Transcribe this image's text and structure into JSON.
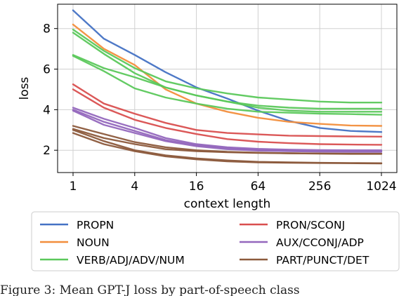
{
  "chart_data": {
    "type": "line",
    "title": "",
    "xlabel": "context length",
    "ylabel": "loss",
    "xscale": "log2",
    "x_ticks": [
      "1",
      "4",
      "16",
      "64",
      "256",
      "1024"
    ],
    "y_ticks": [
      "2",
      "4",
      "6",
      "8"
    ],
    "xlim": [
      1,
      1024
    ],
    "ylim": [
      0.9,
      9.2
    ],
    "grid": true,
    "legend_position": "bottom",
    "series_groups": [
      {
        "name": "PROPN",
        "color": "#4472c4",
        "lines": [
          {
            "x": [
              1,
              2,
              4,
              8,
              16,
              32,
              64,
              128,
              256,
              512,
              1024
            ],
            "y": [
              8.9,
              7.5,
              6.7,
              5.85,
              5.1,
              4.55,
              3.95,
              3.45,
              3.1,
              2.95,
              2.9
            ]
          }
        ]
      },
      {
        "name": "NOUN",
        "color": "#f28e3c",
        "lines": [
          {
            "x": [
              1,
              2,
              4,
              8,
              16,
              32,
              64,
              128,
              256,
              512,
              1024
            ],
            "y": [
              8.2,
              7.0,
              6.2,
              5.0,
              4.3,
              3.9,
              3.6,
              3.4,
              3.3,
              3.22,
              3.2
            ]
          }
        ]
      },
      {
        "name": "VERB/ADJ/ADV/NUM",
        "color": "#5bc85b",
        "lines": [
          {
            "x": [
              1,
              2,
              4,
              8,
              16,
              32,
              64,
              128,
              256,
              512,
              1024
            ],
            "y": [
              7.95,
              6.9,
              6.05,
              5.4,
              5.05,
              4.8,
              4.6,
              4.5,
              4.4,
              4.35,
              4.35
            ]
          },
          {
            "x": [
              1,
              2,
              4,
              8,
              16,
              32,
              64,
              128,
              256,
              512,
              1024
            ],
            "y": [
              7.8,
              6.75,
              5.8,
              5.1,
              4.7,
              4.4,
              4.2,
              4.1,
              4.05,
              4.05,
              4.05
            ]
          },
          {
            "x": [
              1,
              2,
              4,
              8,
              16,
              32,
              64,
              128,
              256,
              512,
              1024
            ],
            "y": [
              6.7,
              6.05,
              5.6,
              5.1,
              4.7,
              4.4,
              4.1,
              3.95,
              3.9,
              3.9,
              3.9
            ]
          },
          {
            "x": [
              1,
              2,
              4,
              8,
              16,
              32,
              64,
              128,
              256,
              512,
              1024
            ],
            "y": [
              6.65,
              5.9,
              5.05,
              4.6,
              4.3,
              4.05,
              3.9,
              3.85,
              3.8,
              3.78,
              3.75
            ]
          }
        ]
      },
      {
        "name": "PRON/SCONJ",
        "color": "#d94f4f",
        "lines": [
          {
            "x": [
              1,
              2,
              4,
              8,
              16,
              32,
              64,
              128,
              256,
              512,
              1024
            ],
            "y": [
              5.25,
              4.3,
              3.8,
              3.35,
              3.0,
              2.85,
              2.78,
              2.72,
              2.7,
              2.68,
              2.67
            ]
          },
          {
            "x": [
              1,
              2,
              4,
              8,
              16,
              32,
              64,
              128,
              256,
              512,
              1024
            ],
            "y": [
              5.0,
              4.1,
              3.5,
              3.1,
              2.8,
              2.55,
              2.42,
              2.35,
              2.3,
              2.28,
              2.27
            ]
          }
        ]
      },
      {
        "name": "AUX/CCONJ/ADP",
        "color": "#9467bd",
        "lines": [
          {
            "x": [
              1,
              2,
              4,
              8,
              16,
              32,
              64,
              128,
              256,
              512,
              1024
            ],
            "y": [
              4.1,
              3.55,
              3.1,
              2.6,
              2.3,
              2.15,
              2.07,
              2.03,
              2.01,
              2.0,
              2.0
            ]
          },
          {
            "x": [
              1,
              2,
              4,
              8,
              16,
              32,
              64,
              128,
              256,
              512,
              1024
            ],
            "y": [
              4.0,
              3.4,
              2.95,
              2.5,
              2.25,
              2.1,
              2.02,
              1.98,
              1.96,
              1.95,
              1.95
            ]
          },
          {
            "x": [
              1,
              2,
              4,
              8,
              16,
              32,
              64,
              128,
              256,
              512,
              1024
            ],
            "y": [
              3.95,
              3.25,
              2.85,
              2.45,
              2.2,
              2.05,
              1.98,
              1.95,
              1.93,
              1.92,
              1.92
            ]
          }
        ]
      },
      {
        "name": "PART/PUNCT/DET",
        "color": "#8c5a3c",
        "lines": [
          {
            "x": [
              1,
              2,
              4,
              8,
              16,
              32,
              64,
              128,
              256,
              512,
              1024
            ],
            "y": [
              3.2,
              2.8,
              2.4,
              2.15,
              2.0,
              1.92,
              1.88,
              1.85,
              1.83,
              1.82,
              1.82
            ]
          },
          {
            "x": [
              1,
              2,
              4,
              8,
              16,
              32,
              64,
              128,
              256,
              512,
              1024
            ],
            "y": [
              3.05,
              2.6,
              2.3,
              2.05,
              1.95,
              1.9,
              1.87,
              1.85,
              1.84,
              1.83,
              1.83
            ]
          },
          {
            "x": [
              1,
              2,
              4,
              8,
              16,
              32,
              64,
              128,
              256,
              512,
              1024
            ],
            "y": [
              2.85,
              2.3,
              1.95,
              1.7,
              1.55,
              1.45,
              1.4,
              1.38,
              1.37,
              1.36,
              1.35
            ]
          },
          {
            "x": [
              1,
              2,
              4,
              8,
              16,
              32,
              64,
              128,
              256,
              512,
              1024
            ],
            "y": [
              3.0,
              2.45,
              2.0,
              1.75,
              1.6,
              1.5,
              1.43,
              1.4,
              1.38,
              1.37,
              1.36
            ]
          }
        ]
      }
    ]
  },
  "caption_fragment": "Figure 3: Mean GPT-J loss by part-of-speech class"
}
